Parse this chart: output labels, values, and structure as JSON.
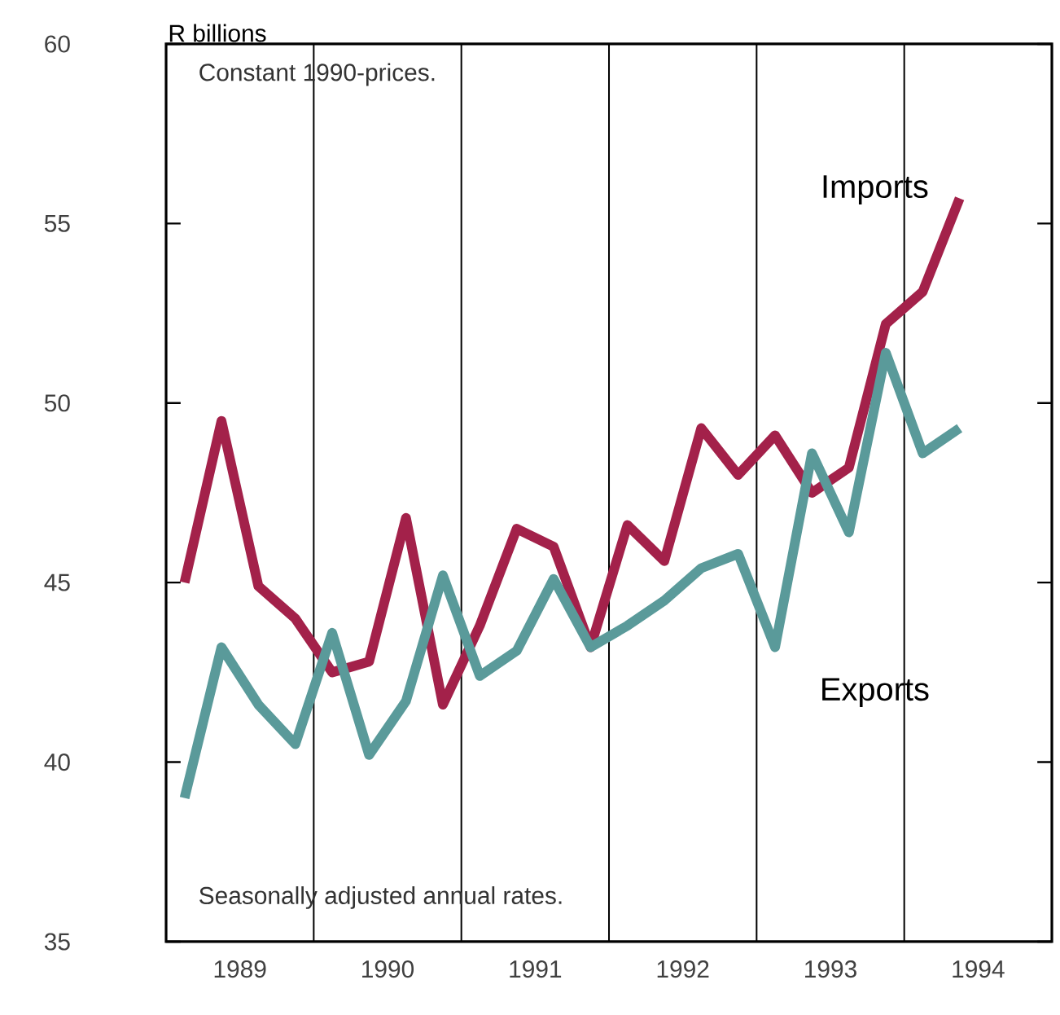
{
  "chart_data": {
    "type": "line",
    "ylabel": "R billions",
    "annotations": [
      "Constant 1990-prices.",
      "Seasonally adjusted annual rates."
    ],
    "x": [
      1989.125,
      1989.375,
      1989.625,
      1989.875,
      1990.125,
      1990.375,
      1990.625,
      1990.875,
      1991.125,
      1991.375,
      1991.625,
      1991.875,
      1992.125,
      1992.375,
      1992.625,
      1992.875,
      1993.125,
      1993.375,
      1993.625,
      1993.875,
      1994.125,
      1994.375
    ],
    "series": [
      {
        "name": "Imports",
        "color": "#a3214a",
        "values": [
          45.0,
          49.5,
          44.9,
          44.0,
          42.5,
          42.8,
          46.8,
          41.6,
          43.8,
          46.5,
          46.0,
          43.2,
          46.6,
          45.6,
          49.3,
          48.0,
          49.1,
          47.5,
          48.2,
          52.2,
          53.1,
          55.7
        ]
      },
      {
        "name": "Exports",
        "color": "#5a9a9a",
        "values": [
          39.0,
          43.2,
          41.6,
          40.5,
          43.6,
          40.2,
          41.7,
          45.2,
          42.4,
          43.1,
          45.1,
          43.2,
          43.8,
          44.5,
          45.4,
          45.8,
          43.2,
          48.6,
          46.4,
          51.4,
          48.6,
          49.3
        ]
      }
    ],
    "xlim": [
      1989,
      1995
    ],
    "xticks": [
      {
        "value": 1989.5,
        "label": "1989"
      },
      {
        "value": 1990.5,
        "label": "1990"
      },
      {
        "value": 1991.5,
        "label": "1991"
      },
      {
        "value": 1992.5,
        "label": "1992"
      },
      {
        "value": 1993.5,
        "label": "1993"
      },
      {
        "value": 1994.5,
        "label": "1994"
      }
    ],
    "ylim": [
      35,
      60
    ],
    "yticks": [
      35,
      40,
      45,
      50,
      55,
      60
    ],
    "ref_lines": [
      {
        "axis": "x",
        "value": 1990
      },
      {
        "axis": "x",
        "value": 1991
      },
      {
        "axis": "x",
        "value": 1992
      },
      {
        "axis": "x",
        "value": 1993
      },
      {
        "axis": "x",
        "value": 1994
      }
    ],
    "marker": "none",
    "line_style": "solid"
  }
}
